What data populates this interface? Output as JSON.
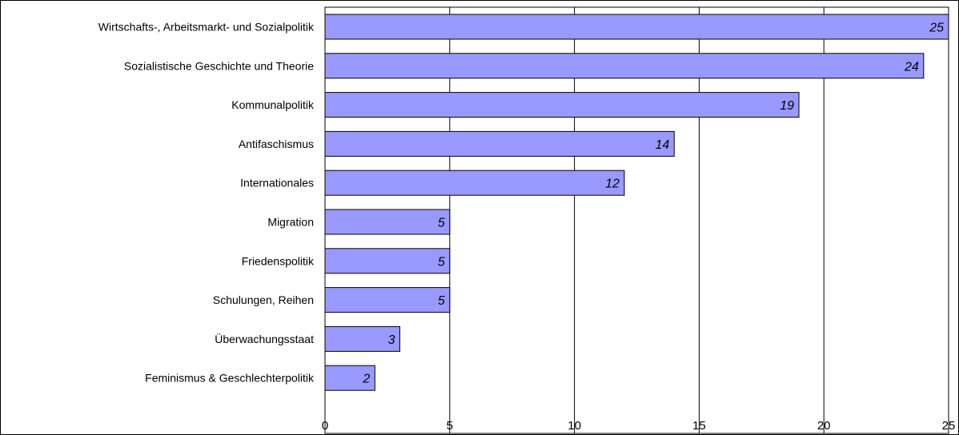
{
  "chart_data": {
    "type": "bar",
    "orientation": "horizontal",
    "title": "",
    "xlabel": "",
    "ylabel": "",
    "categories": [
      "Wirtschafts-, Arbeitsmarkt- und Sozialpolitik",
      "Sozialistische Geschichte und Theorie",
      "Kommunalpolitik",
      "Antifaschismus",
      "Internationales",
      "Migration",
      "Friedenspolitik ",
      "Schulungen, Reihen",
      "Überwachungsstaat",
      "Feminismus & Geschlechterpolitik"
    ],
    "values": [
      25,
      24,
      19,
      14,
      12,
      5,
      5,
      5,
      3,
      2
    ],
    "data_labels": [
      "25",
      "24",
      "19",
      "14",
      "12",
      "5",
      "5",
      "5",
      "3",
      "2"
    ],
    "xlim": [
      0,
      25
    ],
    "x_ticks": [
      0,
      5,
      10,
      15,
      20,
      25
    ],
    "x_tick_labels": [
      "0",
      "5",
      "10",
      "15",
      "20",
      "25"
    ],
    "grid": true,
    "legend": false,
    "colors": {
      "bar_fill": "#9999ff",
      "bar_stroke": "#000000",
      "grid": "#000000",
      "plot_border": "#000000",
      "background": "#ffffff"
    }
  }
}
